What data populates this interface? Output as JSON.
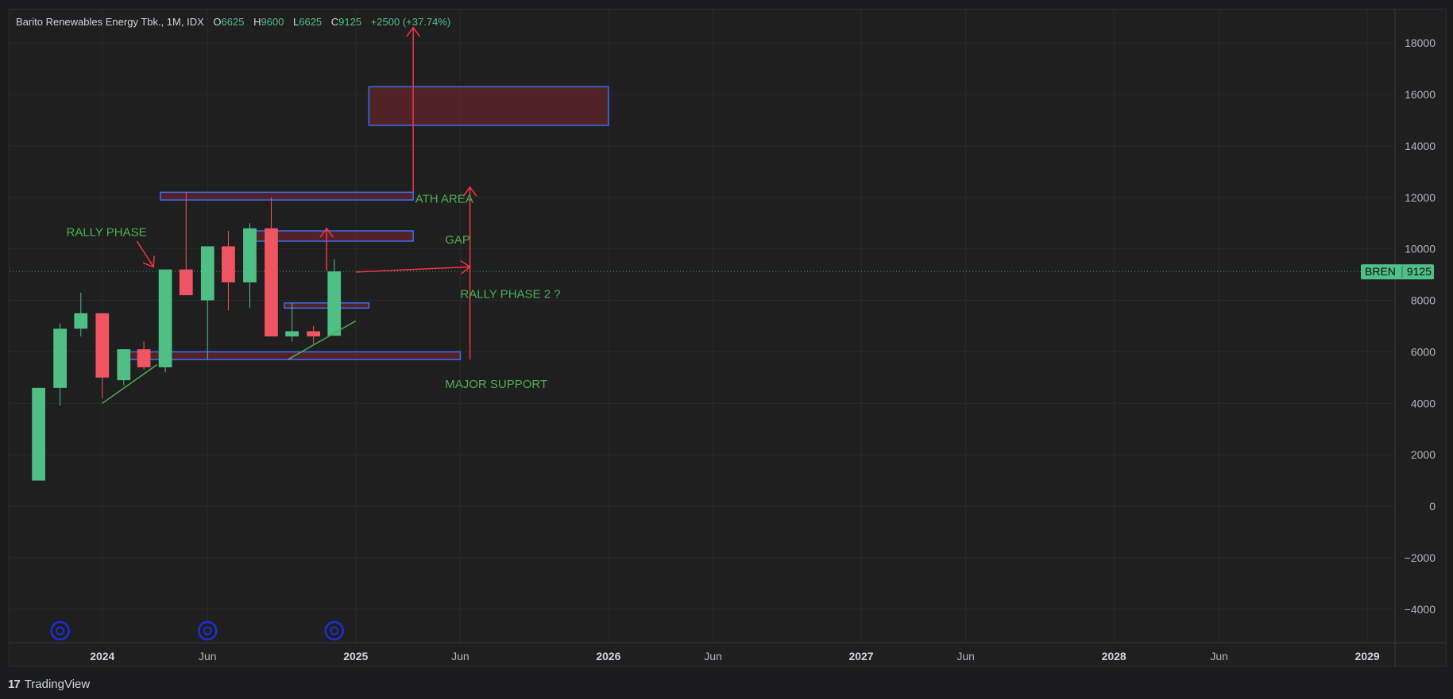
{
  "chart_data": {
    "type": "candlestick",
    "title": "Barito Renewables Energy Tbk., 1M, IDX",
    "ohlc_legend": {
      "o_label": "O",
      "o_value": "6625",
      "h_label": "H",
      "h_value": "9600",
      "l_label": "L",
      "l_value": "6625",
      "c_label": "C",
      "c_value": "9125",
      "change": "+2500 (+37.74%)"
    },
    "ylim": [
      -5300,
      19300
    ],
    "yticks": [
      -4000,
      -2000,
      0,
      2000,
      4000,
      6000,
      8000,
      10000,
      12000,
      14000,
      16000,
      18000
    ],
    "ytick_labels": [
      "−4000",
      "−2000",
      "0",
      "2000",
      "4000",
      "6000",
      "8000",
      "10000",
      "12000",
      "14000",
      "16000",
      "18000"
    ],
    "xlim": [
      "2023-08-20",
      "2029-02-10"
    ],
    "xticks": [
      {
        "date": "2024-01-01",
        "label": "2024",
        "bold": true
      },
      {
        "date": "2024-06-01",
        "label": "Jun",
        "bold": false
      },
      {
        "date": "2025-01-01",
        "label": "2025",
        "bold": true
      },
      {
        "date": "2025-06-01",
        "label": "Jun",
        "bold": false
      },
      {
        "date": "2026-01-01",
        "label": "2026",
        "bold": true
      },
      {
        "date": "2026-06-01",
        "label": "Jun",
        "bold": false
      },
      {
        "date": "2027-01-01",
        "label": "2027",
        "bold": true
      },
      {
        "date": "2027-06-01",
        "label": "Jun",
        "bold": false
      },
      {
        "date": "2028-01-01",
        "label": "2028",
        "bold": true
      },
      {
        "date": "2028-06-01",
        "label": "Jun",
        "bold": false
      },
      {
        "date": "2029-01-01",
        "label": "2029",
        "bold": true
      }
    ],
    "candles": [
      {
        "date": "2023-10-01",
        "o": 1000,
        "h": 4600,
        "l": 1000,
        "c": 4600
      },
      {
        "date": "2023-11-01",
        "o": 4600,
        "h": 7100,
        "l": 3900,
        "c": 6900
      },
      {
        "date": "2023-12-01",
        "o": 6900,
        "h": 8300,
        "l": 6600,
        "c": 7500
      },
      {
        "date": "2024-01-01",
        "o": 7500,
        "h": 7500,
        "l": 4200,
        "c": 5000
      },
      {
        "date": "2024-02-01",
        "o": 4900,
        "h": 6100,
        "l": 4700,
        "c": 6100
      },
      {
        "date": "2024-03-01",
        "o": 6100,
        "h": 6400,
        "l": 5300,
        "c": 5400
      },
      {
        "date": "2024-04-01",
        "o": 5400,
        "h": 9200,
        "l": 5200,
        "c": 9200
      },
      {
        "date": "2024-05-01",
        "o": 9200,
        "h": 12200,
        "l": 8200,
        "c": 8200
      },
      {
        "date": "2024-06-01",
        "o": 8000,
        "h": 10100,
        "l": 5700,
        "c": 10100
      },
      {
        "date": "2024-07-01",
        "o": 10100,
        "h": 10700,
        "l": 7600,
        "c": 8700
      },
      {
        "date": "2024-08-01",
        "o": 8700,
        "h": 11000,
        "l": 7700,
        "c": 10800
      },
      {
        "date": "2024-09-01",
        "o": 10800,
        "h": 12000,
        "l": 6600,
        "c": 6600
      },
      {
        "date": "2024-10-01",
        "o": 6600,
        "h": 7900,
        "l": 6400,
        "c": 6800
      },
      {
        "date": "2024-11-01",
        "o": 6800,
        "h": 7000,
        "l": 6300,
        "c": 6600
      },
      {
        "date": "2024-12-01",
        "o": 6625,
        "h": 9600,
        "l": 6625,
        "c": 9125
      }
    ],
    "up_color": "#4fbf86",
    "down_color": "#ef5563",
    "price_tag": {
      "symbol": "BREN",
      "value": 9125
    },
    "boxes": [
      {
        "x1": "2025-01-20",
        "x2": "2026-01-01",
        "y1": 14800,
        "y2": 16300
      },
      {
        "x1": "2024-03-25",
        "x2": "2025-03-25",
        "y1": 11900,
        "y2": 12200
      },
      {
        "x1": "2024-08-10",
        "x2": "2025-03-25",
        "y1": 10300,
        "y2": 10700
      },
      {
        "x1": "2024-09-20",
        "x2": "2025-01-20",
        "y1": 7700,
        "y2": 7900
      },
      {
        "x1": "2024-01-25",
        "x2": "2025-06-01",
        "y1": 5700,
        "y2": 6000
      }
    ],
    "box_stroke": "#3c6ef0",
    "box_fill": "#7a2530",
    "annotations": [
      {
        "text": "RALLY PHASE",
        "date": "2023-11-10",
        "value": 10500
      },
      {
        "text": "ATH AREA",
        "date": "2025-03-28",
        "value": 11800
      },
      {
        "text": "GAP",
        "date": "2025-05-10",
        "value": 10200
      },
      {
        "text": "RALLY PHASE 2 ?",
        "date": "2025-06-01",
        "value": 8100
      },
      {
        "text": "MAJOR SUPPORT",
        "date": "2025-05-10",
        "value": 4600
      }
    ],
    "annotation_color": "#4caf50",
    "arrows": [
      {
        "x1": "2025-03-25",
        "y1": 12200,
        "x2": "2025-03-25",
        "y2": 18600
      },
      {
        "x1": "2025-06-15",
        "y1": 5700,
        "x2": "2025-06-15",
        "y2": 12400
      },
      {
        "x1": "2024-11-20",
        "y1": 9150,
        "x2": "2024-11-20",
        "y2": 10800
      },
      {
        "x1": "2025-01-01",
        "y1": 9100,
        "x2": "2025-06-15",
        "y2": 9300
      },
      {
        "x1": "2024-02-20",
        "y1": 10300,
        "x2": "2024-03-15",
        "y2": 9300
      }
    ],
    "arrow_color": "#f23645",
    "trendlines": [
      {
        "x1": "2024-01-01",
        "y1": 4000,
        "x2": "2024-03-20",
        "y2": 5500
      },
      {
        "x1": "2024-09-25",
        "y1": 5700,
        "x2": "2025-01-01",
        "y2": 7200
      }
    ],
    "trendline_color": "#4caf50",
    "event_markers": [
      "2023-11-01",
      "2024-06-01",
      "2024-12-01"
    ],
    "event_marker_color": "#1f2dd8",
    "grid": true,
    "grid_color": "#2a2a2e",
    "axis_text_color": "#b2b5be"
  },
  "footer": {
    "logo": "17",
    "brand": "TradingView"
  }
}
